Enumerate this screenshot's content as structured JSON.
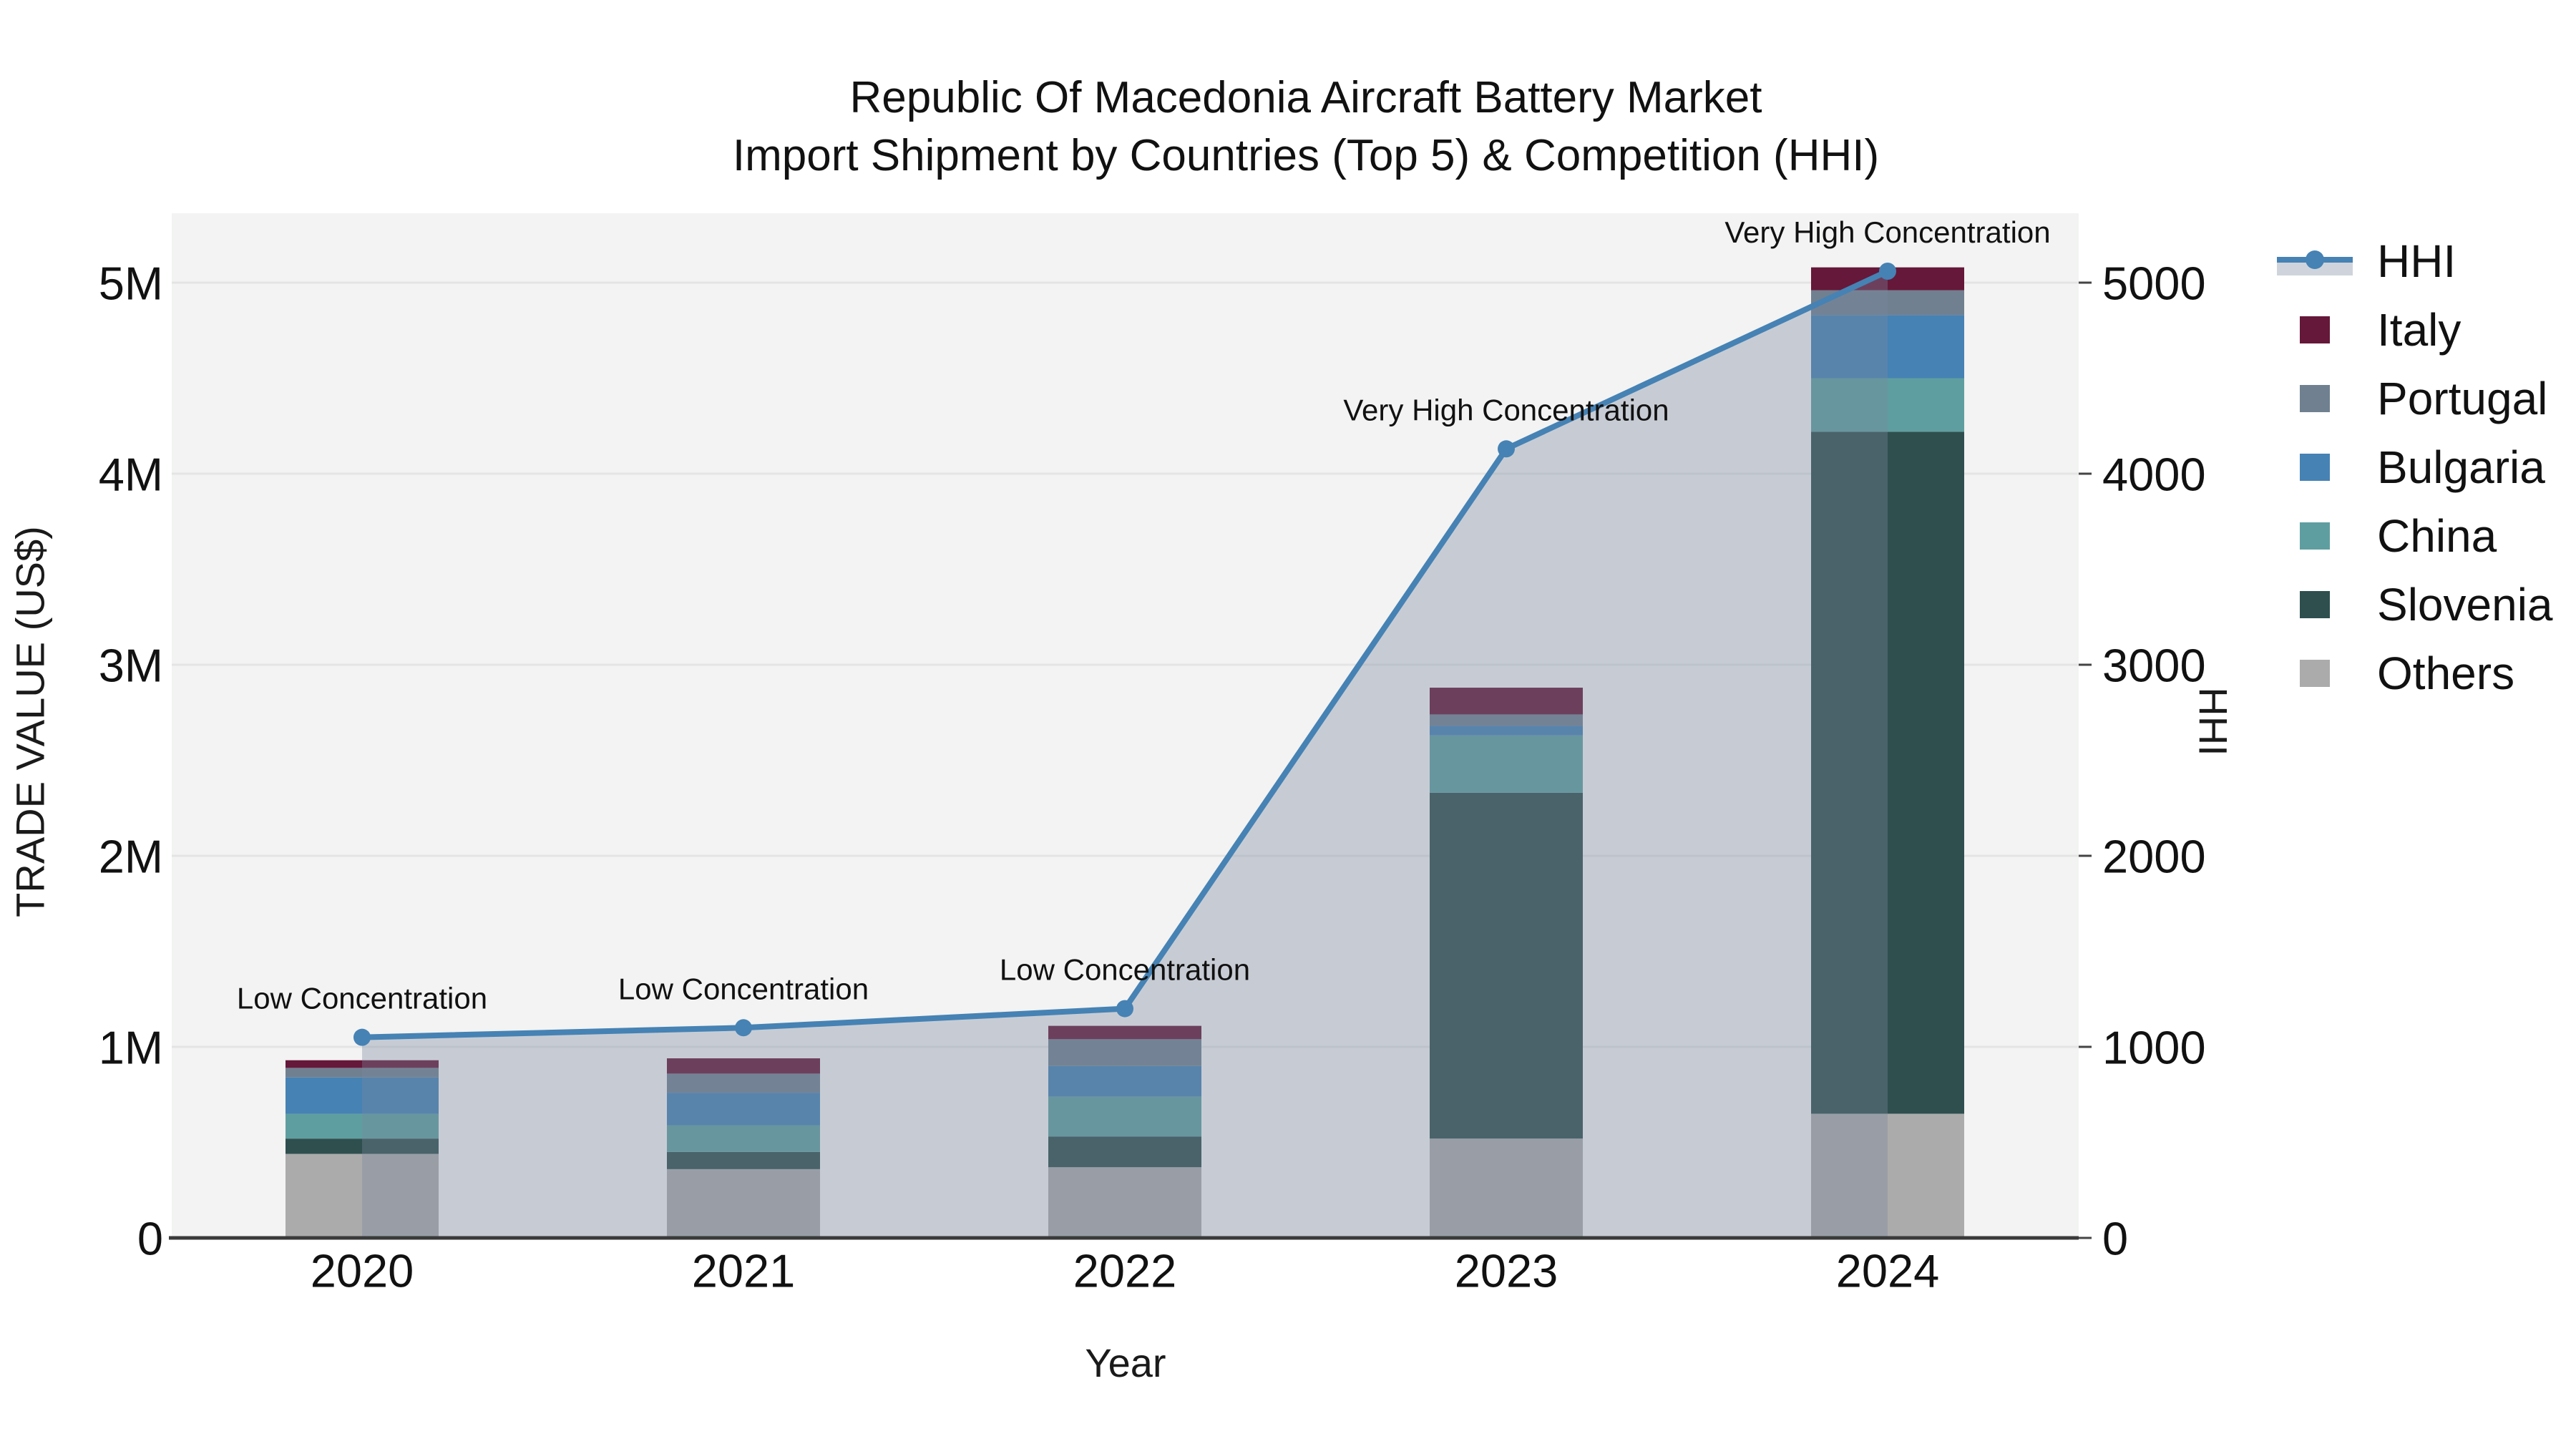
{
  "title": {
    "line1": "Republic Of Macedonia Aircraft Battery Market",
    "line2": "Import Shipment by Countries (Top 5) & Competition (HHI)"
  },
  "axes": {
    "x": {
      "title": "Year",
      "tick_labels": [
        "2020",
        "2021",
        "2022",
        "2023",
        "2024"
      ]
    },
    "y_left": {
      "title": "TRADE VALUE (US$)",
      "tick_labels": [
        "0",
        "1M",
        "2M",
        "3M",
        "4M",
        "5M"
      ],
      "range_musd": [
        0,
        5
      ]
    },
    "y_right": {
      "title": "HHI",
      "tick_labels": [
        "0",
        "1000",
        "2000",
        "3000",
        "4000",
        "5000"
      ],
      "range": [
        0,
        5000
      ]
    }
  },
  "legend": {
    "items": [
      {
        "label": "HHI",
        "type": "line",
        "color": "#4682B4"
      },
      {
        "label": "Italy",
        "type": "swatch",
        "color": "#651839"
      },
      {
        "label": "Portugal",
        "type": "swatch",
        "color": "#708090"
      },
      {
        "label": "Bulgaria",
        "type": "swatch",
        "color": "#4682B4"
      },
      {
        "label": "China",
        "type": "swatch",
        "color": "#5F9EA0"
      },
      {
        "label": "Slovenia",
        "type": "swatch",
        "color": "#2F4F4F"
      },
      {
        "label": "Others",
        "type": "swatch",
        "color": "#ABABAB"
      }
    ]
  },
  "chart_data": {
    "type": "bar",
    "subtype": "stacked-bars-with-line",
    "title": "Republic Of Macedonia Aircraft Battery Market — Import Shipment by Countries (Top 5) & Competition (HHI)",
    "categories": [
      "2020",
      "2021",
      "2022",
      "2023",
      "2024"
    ],
    "xlabel": "Year",
    "ylabel_left": "TRADE VALUE (US$)",
    "ylabel_right": "HHI",
    "ylim_left_musd": [
      0,
      5.36
    ],
    "ylim_right": [
      0,
      5360
    ],
    "grid": true,
    "legend_position": "right",
    "bar_series_bottom_to_top": [
      {
        "name": "Others",
        "color": "#ABABAB",
        "values_musd": [
          0.44,
          0.36,
          0.37,
          0.52,
          0.65
        ]
      },
      {
        "name": "Slovenia",
        "color": "#2F4F4F",
        "values_musd": [
          0.08,
          0.09,
          0.16,
          1.81,
          3.57
        ]
      },
      {
        "name": "China",
        "color": "#5F9EA0",
        "values_musd": [
          0.13,
          0.14,
          0.21,
          0.3,
          0.28
        ]
      },
      {
        "name": "Bulgaria",
        "color": "#4682B4",
        "values_musd": [
          0.19,
          0.17,
          0.16,
          0.05,
          0.33
        ]
      },
      {
        "name": "Portugal",
        "color": "#708090",
        "values_musd": [
          0.05,
          0.1,
          0.14,
          0.06,
          0.13
        ]
      },
      {
        "name": "Italy",
        "color": "#651839",
        "values_musd": [
          0.04,
          0.08,
          0.07,
          0.14,
          0.12
        ]
      }
    ],
    "bar_totals_musd": [
      0.93,
      0.94,
      1.11,
      2.88,
      5.08
    ],
    "line_series": {
      "name": "HHI",
      "values": [
        1050,
        1100,
        1200,
        4130,
        5060
      ],
      "color": "#4682B4",
      "marker": "circle",
      "area_fill": "rgba(122,136,158,0.36)"
    },
    "annotations": [
      {
        "category": "2020",
        "text": "Low Concentration"
      },
      {
        "category": "2021",
        "text": "Low Concentration"
      },
      {
        "category": "2022",
        "text": "Low Concentration"
      },
      {
        "category": "2023",
        "text": "Very High Concentration"
      },
      {
        "category": "2024",
        "text": "Very High Concentration"
      }
    ],
    "colors": {
      "plot_background": "#F2F3F2",
      "page_background": "#FFFFFF",
      "gridline": "#E4E4E4",
      "axis_line": "#3A3A3A",
      "text": "#1A1A1A"
    }
  }
}
